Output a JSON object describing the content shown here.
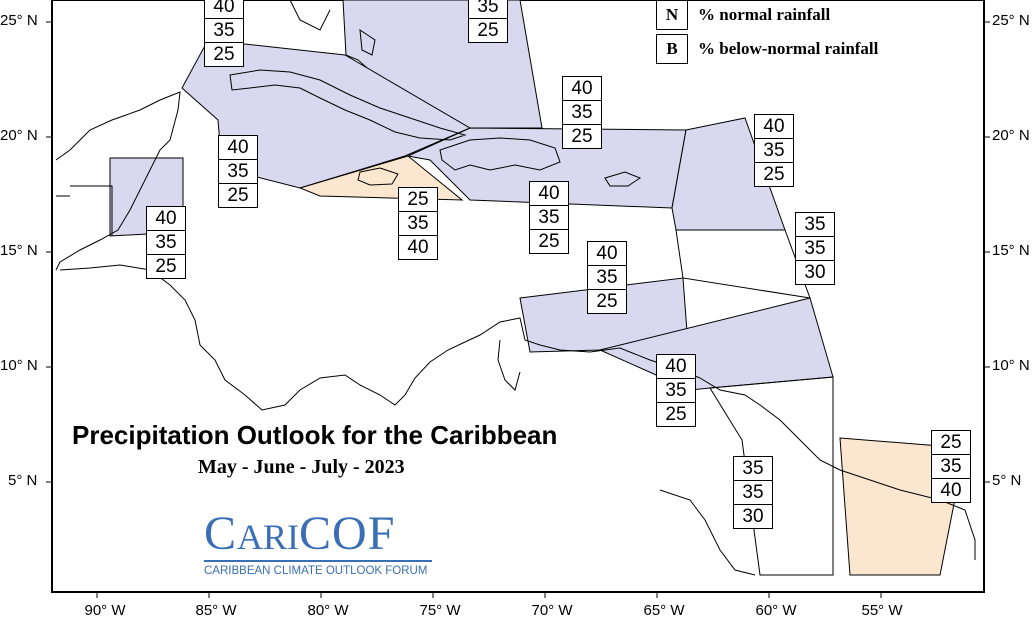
{
  "title": "Precipitation Outlook for the Caribbean",
  "subtitle": "May - June - July - 2023",
  "logo": {
    "name_initial1": "C",
    "name_part1": "ARI",
    "name_part2": "COF",
    "tagline": "CARIBBEAN CLIMATE OUTLOOK FORUM"
  },
  "legend": [
    {
      "key": "N",
      "label": "% normal rainfall"
    },
    {
      "key": "B",
      "label": "% below-normal rainfall"
    }
  ],
  "lat_labels": [
    "25° N",
    "20° N",
    "15° N",
    "10° N",
    "5° N"
  ],
  "lon_labels": [
    "90° W",
    "85° W",
    "80° W",
    "75° W",
    "70° W",
    "65° W",
    "60° W",
    "55° W"
  ],
  "colors": {
    "below_normal_lean": "#d9d8ee",
    "above_normal_lean": "#fbe6cf",
    "frame": "#000000"
  },
  "outlook_boxes": [
    {
      "region": "northern-bahamas",
      "values": [
        "40",
        "35",
        "25"
      ]
    },
    {
      "region": "southern-bahamas",
      "values": [
        "",
        "35",
        "25"
      ]
    },
    {
      "region": "cuba",
      "values": [
        "40",
        "35",
        "25"
      ]
    },
    {
      "region": "belize",
      "values": [
        "40",
        "35",
        "25"
      ]
    },
    {
      "region": "jamaica",
      "values": [
        "25",
        "35",
        "40"
      ]
    },
    {
      "region": "turks-caicos",
      "values": [
        "40",
        "35",
        "25"
      ]
    },
    {
      "region": "hispaniola-puerto-rico",
      "values": [
        "40",
        "35",
        "25"
      ]
    },
    {
      "region": "northern-leeward",
      "values": [
        "40",
        "35",
        "25"
      ]
    },
    {
      "region": "southern-leeward",
      "values": [
        "35",
        "35",
        "30"
      ]
    },
    {
      "region": "abc-islands",
      "values": [
        "40",
        "35",
        "25"
      ]
    },
    {
      "region": "trinidad-tobago",
      "values": [
        "40",
        "35",
        "25"
      ]
    },
    {
      "region": "guyana",
      "values": [
        "35",
        "35",
        "30"
      ]
    },
    {
      "region": "suriname-french-guiana",
      "values": [
        "25",
        "35",
        "40"
      ]
    }
  ]
}
